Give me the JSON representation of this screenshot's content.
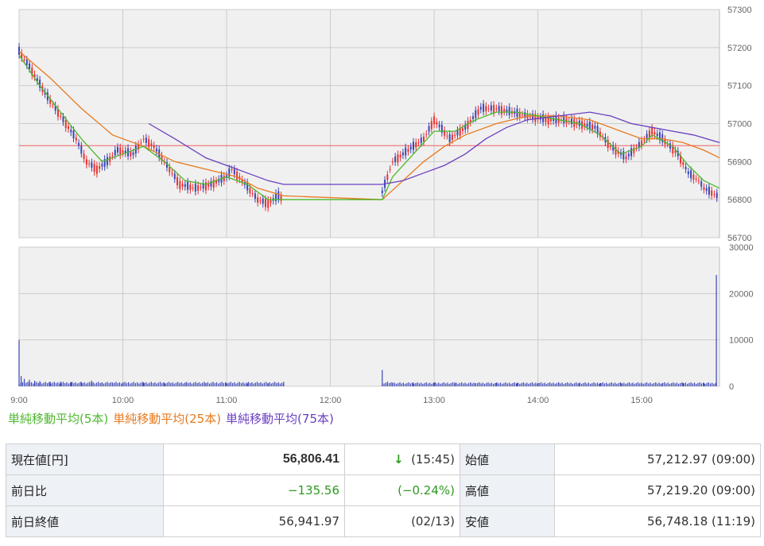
{
  "chart_data": [
    {
      "type": "candlestick",
      "name": "price",
      "x_ticks": [
        "9:00",
        "10:00",
        "11:00",
        "12:00",
        "13:00",
        "14:00",
        "15:00"
      ],
      "y_ticks": [
        "56700",
        "56800",
        "56900",
        "57000",
        "57100",
        "57200",
        "57300"
      ],
      "ylim": [
        56700,
        57300
      ],
      "xlim_hours": [
        9.0,
        15.75
      ],
      "reference_line": 56941.97,
      "grid": true,
      "price_points": [
        [
          9.0,
          57190
        ],
        [
          9.1,
          57150
        ],
        [
          9.25,
          57080
        ],
        [
          9.4,
          57020
        ],
        [
          9.55,
          56960
        ],
        [
          9.65,
          56900
        ],
        [
          9.75,
          56880
        ],
        [
          9.85,
          56900
        ],
        [
          9.95,
          56930
        ],
        [
          10.1,
          56920
        ],
        [
          10.2,
          56960
        ],
        [
          10.3,
          56940
        ],
        [
          10.45,
          56880
        ],
        [
          10.55,
          56840
        ],
        [
          10.7,
          56830
        ],
        [
          10.85,
          56840
        ],
        [
          11.0,
          56860
        ],
        [
          11.05,
          56880
        ],
        [
          11.15,
          56850
        ],
        [
          11.3,
          56800
        ],
        [
          11.4,
          56790
        ],
        [
          11.5,
          56810
        ],
        [
          11.55,
          56800
        ],
        [
          12.5,
          56820
        ],
        [
          12.6,
          56900
        ],
        [
          12.75,
          56930
        ],
        [
          12.9,
          56960
        ],
        [
          13.0,
          57010
        ],
        [
          13.15,
          56960
        ],
        [
          13.3,
          56990
        ],
        [
          13.45,
          57040
        ],
        [
          13.6,
          57040
        ],
        [
          13.75,
          57030
        ],
        [
          13.9,
          57020
        ],
        [
          14.1,
          57010
        ],
        [
          14.25,
          57010
        ],
        [
          14.4,
          57000
        ],
        [
          14.55,
          56990
        ],
        [
          14.7,
          56940
        ],
        [
          14.85,
          56910
        ],
        [
          15.0,
          56950
        ],
        [
          15.1,
          56980
        ],
        [
          15.2,
          56960
        ],
        [
          15.35,
          56920
        ],
        [
          15.45,
          56870
        ],
        [
          15.55,
          56850
        ],
        [
          15.6,
          56830
        ],
        [
          15.75,
          56806
        ]
      ],
      "ma5_points": [
        [
          9.0,
          57180
        ],
        [
          9.2,
          57100
        ],
        [
          9.4,
          57030
        ],
        [
          9.6,
          56960
        ],
        [
          9.8,
          56900
        ],
        [
          10.0,
          56920
        ],
        [
          10.2,
          56940
        ],
        [
          10.4,
          56900
        ],
        [
          10.6,
          56850
        ],
        [
          10.8,
          56840
        ],
        [
          11.0,
          56860
        ],
        [
          11.2,
          56840
        ],
        [
          11.4,
          56800
        ],
        [
          11.55,
          56800
        ],
        [
          12.5,
          56800
        ],
        [
          12.6,
          56860
        ],
        [
          12.8,
          56920
        ],
        [
          13.0,
          56980
        ],
        [
          13.2,
          56980
        ],
        [
          13.4,
          57010
        ],
        [
          13.6,
          57030
        ],
        [
          13.8,
          57030
        ],
        [
          14.0,
          57020
        ],
        [
          14.2,
          57010
        ],
        [
          14.4,
          57000
        ],
        [
          14.6,
          56970
        ],
        [
          14.8,
          56920
        ],
        [
          15.0,
          56940
        ],
        [
          15.1,
          56970
        ],
        [
          15.3,
          56940
        ],
        [
          15.45,
          56890
        ],
        [
          15.6,
          56850
        ],
        [
          15.75,
          56830
        ]
      ],
      "ma25_points": [
        [
          9.0,
          57190
        ],
        [
          9.3,
          57120
        ],
        [
          9.6,
          57040
        ],
        [
          9.9,
          56970
        ],
        [
          10.2,
          56940
        ],
        [
          10.5,
          56900
        ],
        [
          10.8,
          56880
        ],
        [
          11.1,
          56860
        ],
        [
          11.3,
          56830
        ],
        [
          11.55,
          56810
        ],
        [
          12.5,
          56800
        ],
        [
          12.7,
          56850
        ],
        [
          12.9,
          56900
        ],
        [
          13.1,
          56940
        ],
        [
          13.3,
          56970
        ],
        [
          13.6,
          57000
        ],
        [
          13.9,
          57020
        ],
        [
          14.2,
          57020
        ],
        [
          14.5,
          57010
        ],
        [
          14.8,
          56980
        ],
        [
          15.0,
          56960
        ],
        [
          15.2,
          56960
        ],
        [
          15.4,
          56950
        ],
        [
          15.6,
          56930
        ],
        [
          15.75,
          56910
        ]
      ],
      "ma75_points": [
        [
          10.25,
          57000
        ],
        [
          10.5,
          56960
        ],
        [
          10.8,
          56910
        ],
        [
          11.0,
          56890
        ],
        [
          11.2,
          56870
        ],
        [
          11.4,
          56850
        ],
        [
          11.55,
          56840
        ],
        [
          12.5,
          56840
        ],
        [
          12.7,
          56850
        ],
        [
          12.9,
          56870
        ],
        [
          13.1,
          56890
        ],
        [
          13.3,
          56920
        ],
        [
          13.5,
          56960
        ],
        [
          13.7,
          56990
        ],
        [
          13.9,
          57010
        ],
        [
          14.2,
          57020
        ],
        [
          14.5,
          57030
        ],
        [
          14.7,
          57020
        ],
        [
          14.9,
          57000
        ],
        [
          15.1,
          56990
        ],
        [
          15.3,
          56980
        ],
        [
          15.5,
          56970
        ],
        [
          15.75,
          56950
        ]
      ]
    },
    {
      "type": "bar",
      "name": "volume",
      "y_ticks": [
        "0",
        "10000",
        "20000",
        "30000"
      ],
      "ylim": [
        0,
        30000
      ],
      "bars": [
        [
          9.0,
          10000
        ],
        [
          9.02,
          2200
        ],
        [
          9.05,
          1600
        ],
        [
          9.1,
          1400
        ],
        [
          9.15,
          1200
        ],
        [
          9.2,
          1100
        ],
        [
          9.3,
          1000
        ],
        [
          9.4,
          1000
        ],
        [
          9.5,
          900
        ],
        [
          9.6,
          900
        ],
        [
          9.7,
          1200
        ],
        [
          9.8,
          800
        ],
        [
          9.9,
          800
        ],
        [
          10.0,
          800
        ],
        [
          10.2,
          800
        ],
        [
          10.4,
          700
        ],
        [
          10.6,
          700
        ],
        [
          10.8,
          700
        ],
        [
          11.0,
          700
        ],
        [
          11.2,
          600
        ],
        [
          11.4,
          600
        ],
        [
          11.55,
          500
        ],
        [
          12.5,
          3500
        ],
        [
          12.55,
          1000
        ],
        [
          12.6,
          800
        ],
        [
          12.8,
          800
        ],
        [
          13.0,
          800
        ],
        [
          13.2,
          800
        ],
        [
          13.4,
          700
        ],
        [
          13.6,
          700
        ],
        [
          13.8,
          700
        ],
        [
          14.0,
          700
        ],
        [
          14.2,
          700
        ],
        [
          14.4,
          700
        ],
        [
          14.6,
          700
        ],
        [
          14.8,
          700
        ],
        [
          15.0,
          700
        ],
        [
          15.2,
          700
        ],
        [
          15.4,
          700
        ],
        [
          15.6,
          700
        ],
        [
          15.72,
          24000
        ]
      ]
    }
  ],
  "colors": {
    "ma5": "#4db82d",
    "ma25": "#e87a1e",
    "ma75": "#6a3fc0",
    "candle_up": "#e8322f",
    "candle_down": "#3946b8",
    "reference": "#f06060",
    "volume": "#3946b8",
    "plot_bg": "#f0f0f0",
    "grid": "#cccccc"
  },
  "legend": {
    "ma5": "単純移動平均(5本)",
    "ma25": "単純移動平均(25本)",
    "ma75": "単純移動平均(75本)"
  },
  "quote": {
    "current_label": "現在値[円]",
    "current_value": "56,806.41",
    "current_arrow": "↓",
    "current_time": "(15:45)",
    "open_label": "始値",
    "open_value": "57,212.97 (09:00)",
    "change_label": "前日比",
    "change_value": "−135.56",
    "change_pct": "(−0.24%)",
    "high_label": "高値",
    "high_value": "57,219.20 (09:00)",
    "prev_close_label": "前日終値",
    "prev_close_value": "56,941.97",
    "prev_close_date": "(02/13)",
    "low_label": "安値",
    "low_value": "56,748.18 (11:19)"
  }
}
